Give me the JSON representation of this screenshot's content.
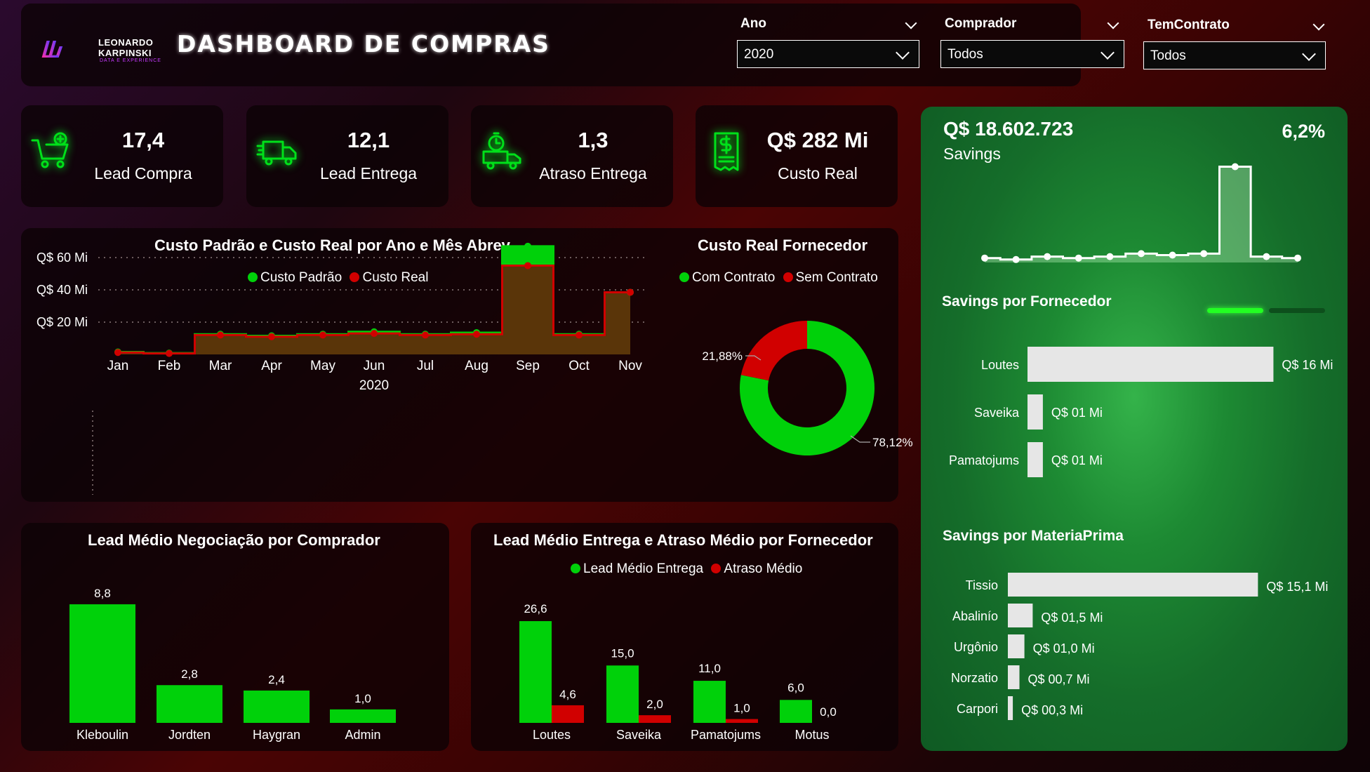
{
  "header": {
    "logo_line1": "LEONARDO",
    "logo_line2": "KARPINSKI",
    "logo_sub": "DATA E EXPERIENCE",
    "title": "DASHBOARD DE COMPRAS",
    "slicers": [
      {
        "label": "Ano",
        "value": "2020"
      },
      {
        "label": "Comprador",
        "value": "Todos"
      },
      {
        "label": "TemContrato",
        "value": "Todos"
      }
    ]
  },
  "kpis": [
    {
      "value": "17,4",
      "label": "Lead Compra",
      "icon": "cart-add-icon"
    },
    {
      "value": "12,1",
      "label": "Lead Entrega",
      "icon": "delivery-truck-icon"
    },
    {
      "value": "1,3",
      "label": "Atraso Entrega",
      "icon": "timer-truck-icon"
    },
    {
      "value": "Q$ 282 Mi",
      "label": "Custo Real",
      "icon": "receipt-dollar-icon"
    }
  ],
  "colors": {
    "green": "#00d10a",
    "red": "#d10000",
    "brown": "#5a3509",
    "light": "#e6e6e6"
  },
  "chart_data": [
    {
      "id": "custo_padrao_real",
      "type": "area",
      "title": "Custo Padrão e Custo Real por Ano e Mês Abrev",
      "categories": [
        "Jan",
        "Feb",
        "Mar",
        "Apr",
        "May",
        "Jun",
        "Jul",
        "Aug",
        "Sep",
        "Oct",
        "Nov"
      ],
      "xlabel": "2020",
      "y_ticks": [
        "Q$ 20 Mi",
        "Q$ 40 Mi",
        "Q$ 60 Mi"
      ],
      "ylim": [
        0,
        75
      ],
      "series": [
        {
          "name": "Custo Padrão",
          "values": [
            1.5,
            0.8,
            12.5,
            11.5,
            12.5,
            14,
            12.5,
            13.5,
            67,
            12.5,
            38.5
          ]
        },
        {
          "name": "Custo Real",
          "values": [
            1.2,
            0.6,
            12,
            11,
            12,
            13,
            12,
            12.5,
            55,
            12,
            38.5
          ]
        }
      ]
    },
    {
      "id": "custo_real_fornecedor",
      "type": "pie",
      "title": "Custo Real Fornecedor",
      "series": [
        {
          "name": "Com Contrato",
          "value": 78.12,
          "label": "78,12%"
        },
        {
          "name": "Sem Contrato",
          "value": 21.88,
          "label": "21,88%"
        }
      ]
    },
    {
      "id": "lead_medio_comprador",
      "type": "bar",
      "title": "Lead Médio Negociação por Comprador",
      "categories": [
        "Kleboulin",
        "Jordten",
        "Haygran",
        "Admin"
      ],
      "values": [
        8.8,
        2.8,
        2.4,
        1.0
      ],
      "labels": [
        "8,8",
        "2,8",
        "2,4",
        "1,0"
      ]
    },
    {
      "id": "lead_entrega_atraso",
      "type": "bar",
      "title": "Lead Médio Entrega e Atraso Médio por Fornecedor",
      "categories": [
        "Loutes",
        "Saveika",
        "Pamatojums",
        "Motus"
      ],
      "series": [
        {
          "name": "Lead Médio Entrega",
          "values": [
            26.6,
            15.0,
            11.0,
            6.0
          ],
          "labels": [
            "26,6",
            "15,0",
            "11,0",
            "6,0"
          ]
        },
        {
          "name": "Atraso Médio",
          "values": [
            4.6,
            2.0,
            1.0,
            0.0
          ],
          "labels": [
            "4,6",
            "2,0",
            "1,0",
            "0,0"
          ]
        }
      ]
    },
    {
      "id": "savings_trend",
      "type": "line",
      "values": [
        0.3,
        0.2,
        0.4,
        0.3,
        0.4,
        0.6,
        0.5,
        0.6,
        6.5,
        0.4,
        0.3
      ]
    },
    {
      "id": "savings_fornecedor",
      "type": "bar",
      "title": "Savings por Fornecedor",
      "categories": [
        "Loutes",
        "Saveika",
        "Pamatojums"
      ],
      "values": [
        16,
        1,
        1
      ],
      "labels": [
        "Q$ 16 Mi",
        "Q$ 01 Mi",
        "Q$ 01 Mi"
      ]
    },
    {
      "id": "savings_materiaprima",
      "type": "bar",
      "title": "Savings por MateriaPrima",
      "categories": [
        "Tissio",
        "Abalinío",
        "Urgônio",
        "Norzatio",
        "Carpori"
      ],
      "values": [
        15.1,
        1.5,
        1.0,
        0.7,
        0.3
      ],
      "labels": [
        "Q$ 15,1 Mi",
        "Q$ 01,5 Mi",
        "Q$ 01,0 Mi",
        "Q$ 00,7 Mi",
        "Q$ 00,3 Mi"
      ]
    }
  ],
  "savings": {
    "value": "Q$ 18.602.723",
    "label": "Savings",
    "percent": "6,2%"
  }
}
